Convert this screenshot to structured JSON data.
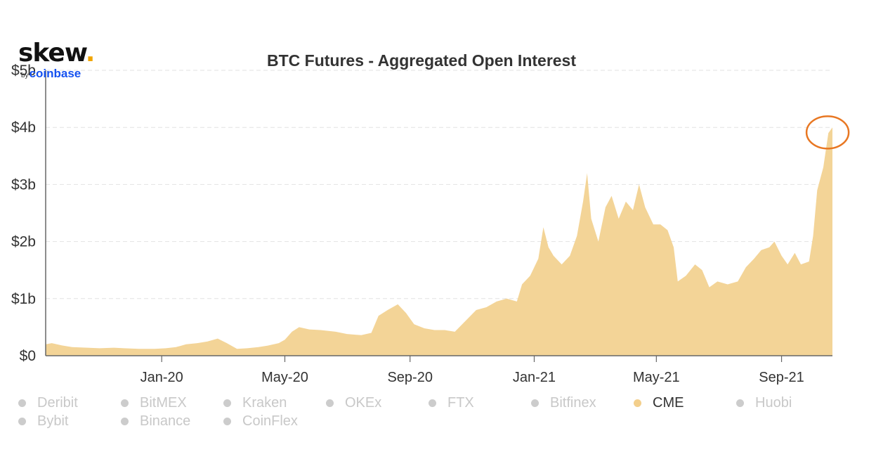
{
  "logo": {
    "brand": "skew",
    "dot": ".",
    "by": "by",
    "parent": "coinbase"
  },
  "chart_data": {
    "type": "area",
    "title": "BTC Futures - Aggregated Open Interest",
    "xlabel": "",
    "ylabel": "",
    "ylim": [
      0,
      5
    ],
    "y_ticks": [
      {
        "value": 0,
        "label": "$0"
      },
      {
        "value": 1,
        "label": "$1b"
      },
      {
        "value": 2,
        "label": "$2b"
      },
      {
        "value": 3,
        "label": "$3b"
      },
      {
        "value": 4,
        "label": "$4b"
      },
      {
        "value": 5,
        "label": "$5b"
      }
    ],
    "x_range": [
      "2019-09-09",
      "2021-10-21"
    ],
    "x_ticks": [
      {
        "date": "2020-01-01",
        "label": "Jan-20"
      },
      {
        "date": "2020-05-01",
        "label": "May-20"
      },
      {
        "date": "2020-09-01",
        "label": "Sep-20"
      },
      {
        "date": "2021-01-01",
        "label": "Jan-21"
      },
      {
        "date": "2021-05-01",
        "label": "May-21"
      },
      {
        "date": "2021-09-01",
        "label": "Sep-21"
      }
    ],
    "grid": "horizontal-dashed",
    "legend_placement": "bottom",
    "series": [
      {
        "name": "CME",
        "color": "#f3d497",
        "points": [
          [
            "2019-09-09",
            0.2
          ],
          [
            "2019-09-15",
            0.22
          ],
          [
            "2019-09-25",
            0.18
          ],
          [
            "2019-10-05",
            0.15
          ],
          [
            "2019-10-20",
            0.14
          ],
          [
            "2019-11-01",
            0.13
          ],
          [
            "2019-11-15",
            0.14
          ],
          [
            "2019-11-25",
            0.13
          ],
          [
            "2019-12-10",
            0.12
          ],
          [
            "2019-12-25",
            0.12
          ],
          [
            "2020-01-05",
            0.13
          ],
          [
            "2020-01-15",
            0.15
          ],
          [
            "2020-01-25",
            0.2
          ],
          [
            "2020-02-05",
            0.22
          ],
          [
            "2020-02-15",
            0.25
          ],
          [
            "2020-02-25",
            0.3
          ],
          [
            "2020-03-05",
            0.22
          ],
          [
            "2020-03-15",
            0.12
          ],
          [
            "2020-03-25",
            0.13
          ],
          [
            "2020-04-05",
            0.15
          ],
          [
            "2020-04-15",
            0.18
          ],
          [
            "2020-04-25",
            0.22
          ],
          [
            "2020-05-01",
            0.28
          ],
          [
            "2020-05-08",
            0.42
          ],
          [
            "2020-05-15",
            0.5
          ],
          [
            "2020-05-25",
            0.46
          ],
          [
            "2020-06-05",
            0.45
          ],
          [
            "2020-06-20",
            0.42
          ],
          [
            "2020-07-01",
            0.38
          ],
          [
            "2020-07-15",
            0.36
          ],
          [
            "2020-07-25",
            0.4
          ],
          [
            "2020-08-01",
            0.7
          ],
          [
            "2020-08-10",
            0.8
          ],
          [
            "2020-08-20",
            0.9
          ],
          [
            "2020-08-28",
            0.75
          ],
          [
            "2020-09-05",
            0.55
          ],
          [
            "2020-09-15",
            0.48
          ],
          [
            "2020-09-25",
            0.45
          ],
          [
            "2020-10-05",
            0.45
          ],
          [
            "2020-10-15",
            0.42
          ],
          [
            "2020-10-25",
            0.6
          ],
          [
            "2020-11-05",
            0.8
          ],
          [
            "2020-11-15",
            0.85
          ],
          [
            "2020-11-25",
            0.95
          ],
          [
            "2020-12-05",
            1.0
          ],
          [
            "2020-12-15",
            0.95
          ],
          [
            "2020-12-20",
            1.25
          ],
          [
            "2020-12-28",
            1.4
          ],
          [
            "2021-01-05",
            1.7
          ],
          [
            "2021-01-10",
            2.25
          ],
          [
            "2021-01-15",
            1.9
          ],
          [
            "2021-01-20",
            1.75
          ],
          [
            "2021-01-28",
            1.6
          ],
          [
            "2021-02-05",
            1.75
          ],
          [
            "2021-02-12",
            2.1
          ],
          [
            "2021-02-18",
            2.7
          ],
          [
            "2021-02-22",
            3.2
          ],
          [
            "2021-02-26",
            2.4
          ],
          [
            "2021-03-05",
            2.0
          ],
          [
            "2021-03-12",
            2.6
          ],
          [
            "2021-03-18",
            2.8
          ],
          [
            "2021-03-25",
            2.4
          ],
          [
            "2021-04-01",
            2.7
          ],
          [
            "2021-04-08",
            2.55
          ],
          [
            "2021-04-14",
            3.0
          ],
          [
            "2021-04-20",
            2.6
          ],
          [
            "2021-04-28",
            2.3
          ],
          [
            "2021-05-05",
            2.3
          ],
          [
            "2021-05-12",
            2.2
          ],
          [
            "2021-05-18",
            1.9
          ],
          [
            "2021-05-22",
            1.3
          ],
          [
            "2021-05-30",
            1.4
          ],
          [
            "2021-06-08",
            1.6
          ],
          [
            "2021-06-15",
            1.5
          ],
          [
            "2021-06-22",
            1.2
          ],
          [
            "2021-06-30",
            1.3
          ],
          [
            "2021-07-10",
            1.25
          ],
          [
            "2021-07-20",
            1.3
          ],
          [
            "2021-07-28",
            1.55
          ],
          [
            "2021-08-05",
            1.7
          ],
          [
            "2021-08-12",
            1.85
          ],
          [
            "2021-08-20",
            1.9
          ],
          [
            "2021-08-25",
            2.0
          ],
          [
            "2021-09-01",
            1.75
          ],
          [
            "2021-09-07",
            1.6
          ],
          [
            "2021-09-14",
            1.8
          ],
          [
            "2021-09-20",
            1.6
          ],
          [
            "2021-09-28",
            1.65
          ],
          [
            "2021-10-02",
            2.1
          ],
          [
            "2021-10-06",
            2.9
          ],
          [
            "2021-10-12",
            3.3
          ],
          [
            "2021-10-17",
            3.9
          ],
          [
            "2021-10-21",
            4.0
          ]
        ]
      }
    ],
    "annotations": [
      {
        "type": "circle-highlight",
        "date": "2021-10-19",
        "value": 3.9,
        "color": "#e87722"
      }
    ]
  },
  "legend": {
    "items": [
      {
        "label": "Deribit",
        "active": false
      },
      {
        "label": "BitMEX",
        "active": false
      },
      {
        "label": "Kraken",
        "active": false
      },
      {
        "label": "OKEx",
        "active": false
      },
      {
        "label": "FTX",
        "active": false
      },
      {
        "label": "Bitfinex",
        "active": false
      },
      {
        "label": "CME",
        "active": true
      },
      {
        "label": "Huobi",
        "active": false
      },
      {
        "label": "Bybit",
        "active": false
      },
      {
        "label": "Binance",
        "active": false
      },
      {
        "label": "CoinFlex",
        "active": false
      }
    ]
  }
}
